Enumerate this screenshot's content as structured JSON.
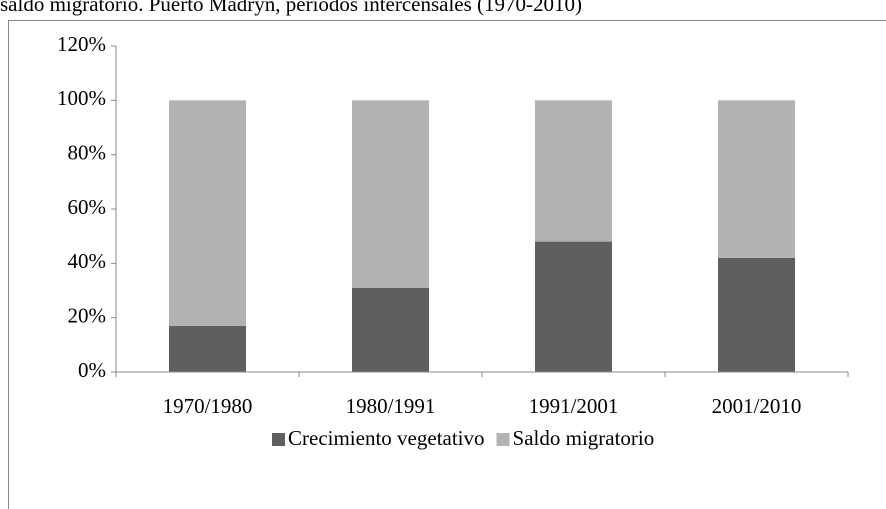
{
  "chart_data": {
    "type": "stacked_bar",
    "title": "saldo migratorio. Puerto Madryn, períodos intercensales (1970-2010)",
    "categories": [
      "1970/1980",
      "1980/1991",
      "1991/2001",
      "2001/2010"
    ],
    "series": [
      {
        "name": "Crecimiento vegetativo",
        "color": "#5f5f5f",
        "values": [
          17,
          31,
          48,
          42
        ]
      },
      {
        "name": "Saldo migratorio",
        "color": "#b2b2b2",
        "values": [
          83,
          69,
          52,
          58
        ]
      }
    ],
    "ylim": [
      0,
      120
    ],
    "yticks": [
      {
        "value": 0,
        "label": "0%"
      },
      {
        "value": 20,
        "label": "20%"
      },
      {
        "value": 40,
        "label": "40%"
      },
      {
        "value": 60,
        "label": "60%"
      },
      {
        "value": 80,
        "label": "80%"
      },
      {
        "value": 100,
        "label": "100%"
      },
      {
        "value": 120,
        "label": "120%"
      }
    ],
    "legend": "bottom"
  }
}
